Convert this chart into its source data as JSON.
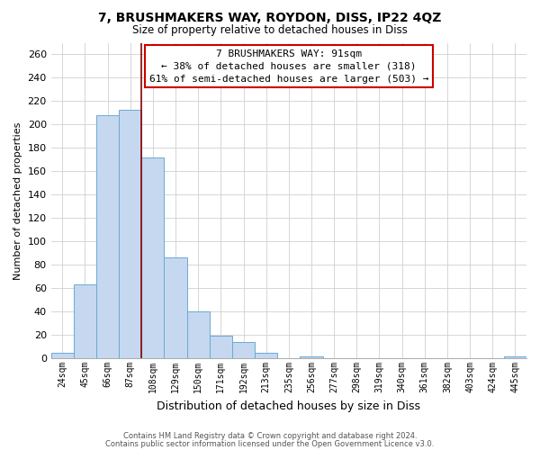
{
  "title": "7, BRUSHMAKERS WAY, ROYDON, DISS, IP22 4QZ",
  "subtitle": "Size of property relative to detached houses in Diss",
  "xlabel": "Distribution of detached houses by size in Diss",
  "ylabel": "Number of detached properties",
  "bar_values": [
    5,
    63,
    208,
    213,
    172,
    86,
    40,
    19,
    14,
    5,
    0,
    2,
    0,
    0,
    0,
    0,
    0,
    0,
    0,
    0,
    2
  ],
  "bar_labels": [
    "24sqm",
    "45sqm",
    "66sqm",
    "87sqm",
    "108sqm",
    "129sqm",
    "150sqm",
    "171sqm",
    "192sqm",
    "213sqm",
    "235sqm",
    "256sqm",
    "277sqm",
    "298sqm",
    "319sqm",
    "340sqm",
    "361sqm",
    "382sqm",
    "403sqm",
    "424sqm",
    "445sqm"
  ],
  "bar_color": "#c5d8ef",
  "bar_edge_color": "#6aaad4",
  "highlight_line_color": "#8b0000",
  "annotation_title": "7 BRUSHMAKERS WAY: 91sqm",
  "annotation_line2": "← 38% of detached houses are smaller (318)",
  "annotation_line3": "61% of semi-detached houses are larger (503) →",
  "ylim": [
    0,
    270
  ],
  "yticks": [
    0,
    20,
    40,
    60,
    80,
    100,
    120,
    140,
    160,
    180,
    200,
    220,
    240,
    260
  ],
  "footer_line1": "Contains HM Land Registry data © Crown copyright and database right 2024.",
  "footer_line2": "Contains public sector information licensed under the Open Government Licence v3.0.",
  "bg_color": "#ffffff",
  "grid_color": "#d0d0d0"
}
